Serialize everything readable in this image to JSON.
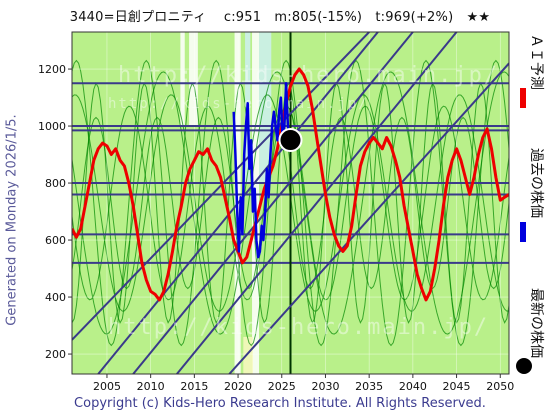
{
  "header": {
    "title": "3440=日創プロニティ　 c:951　m:805(-15%)　t:969(+2%)　★★"
  },
  "side_label": "Generated on Monday 2026/1/5.",
  "footer": "Copyright (c) Kids-Hero Research Institute. All Rights Reserved.",
  "watermark": {
    "top": "http://kids-hero.main.jp/",
    "top_small": "http://kids-hero.main.jp/",
    "bottom": "http://kids-hero.main.jp/"
  },
  "legend": {
    "forecast": "ＡＩ予測",
    "past": "過去の株価",
    "latest": "最新の株価"
  },
  "colors": {
    "plot_bg": "#b9f08a",
    "forecast": "#ee0000",
    "past": "#0000dd",
    "latest": "#000000",
    "trend_line": "#3a3a8a",
    "h_line": "#3a3a8a",
    "green_line": "#008800",
    "band_light": "#ccf0f0",
    "band_white": "#ffffff",
    "band_yellow": "#f8f8c0"
  },
  "chart_data": {
    "type": "line",
    "xlim": [
      2001,
      2051
    ],
    "ylim": [
      130,
      1330
    ],
    "x_ticks": [
      2005,
      2010,
      2015,
      2020,
      2025,
      2030,
      2035,
      2040,
      2045,
      2050
    ],
    "y_ticks": [
      200,
      400,
      600,
      800,
      1000,
      1200
    ],
    "grid": true,
    "horizontal_levels": [
      1150,
      1000,
      985,
      800,
      760,
      620,
      520
    ],
    "current_year_marker": 2026,
    "series": [
      {
        "name": "ＡＩ予測",
        "color": "#ee0000",
        "x": [
          2001,
          2001.5,
          2002,
          2002.5,
          2003,
          2003.5,
          2004,
          2004.5,
          2005,
          2005.5,
          2006,
          2006.5,
          2007,
          2007.5,
          2008,
          2008.5,
          2009,
          2009.5,
          2010,
          2010.5,
          2011,
          2011.5,
          2012,
          2012.5,
          2013,
          2013.5,
          2014,
          2014.5,
          2015,
          2015.5,
          2016,
          2016.5,
          2017,
          2017.5,
          2018,
          2018.5,
          2019,
          2019.5,
          2020,
          2020.5,
          2021,
          2021.5,
          2022,
          2022.5,
          2023,
          2023.5,
          2024,
          2024.5,
          2025,
          2025.5,
          2026,
          2026.5,
          2027,
          2027.5,
          2028,
          2028.5,
          2029,
          2029.5,
          2030,
          2030.5,
          2031,
          2031.5,
          2032,
          2032.5,
          2033,
          2033.5,
          2034,
          2034.5,
          2035,
          2035.5,
          2036,
          2036.5,
          2037,
          2037.5,
          2038,
          2038.5,
          2039,
          2039.5,
          2040,
          2040.5,
          2041,
          2041.5,
          2042,
          2042.5,
          2043,
          2043.5,
          2044,
          2044.5,
          2045,
          2045.5,
          2046,
          2046.5,
          2047,
          2047.5,
          2048,
          2048.5,
          2049,
          2049.5,
          2050,
          2050.5,
          2051
        ],
        "y": [
          640,
          610,
          640,
          720,
          800,
          880,
          920,
          940,
          930,
          900,
          920,
          880,
          860,
          800,
          720,
          620,
          520,
          460,
          420,
          410,
          390,
          420,
          480,
          560,
          650,
          720,
          800,
          850,
          880,
          910,
          900,
          920,
          880,
          860,
          820,
          750,
          680,
          600,
          560,
          520,
          540,
          600,
          660,
          720,
          780,
          820,
          860,
          920,
          1000,
          1080,
          1140,
          1180,
          1200,
          1180,
          1140,
          1060,
          960,
          860,
          760,
          680,
          620,
          580,
          560,
          580,
          650,
          760,
          860,
          910,
          940,
          960,
          940,
          920,
          960,
          930,
          880,
          820,
          720,
          640,
          560,
          480,
          430,
          390,
          420,
          500,
          600,
          720,
          820,
          880,
          920,
          880,
          820,
          760,
          820,
          900,
          960,
          990,
          920,
          820,
          740,
          750,
          760
        ]
      },
      {
        "name": "過去の株価",
        "color": "#0000dd",
        "x": [
          2019.5,
          2019.7,
          2019.9,
          2020.1,
          2020.3,
          2020.5,
          2020.7,
          2020.9,
          2021.1,
          2021.3,
          2021.5,
          2021.7,
          2021.9,
          2022.1,
          2022.3,
          2022.5,
          2022.7,
          2022.9,
          2023.1,
          2023.3,
          2023.5,
          2023.7,
          2023.9,
          2024.1,
          2024.3,
          2024.5,
          2024.7,
          2024.9,
          2025.1,
          2025.3,
          2025.5,
          2025.7,
          2025.9
        ],
        "y": [
          1050,
          900,
          700,
          560,
          750,
          620,
          900,
          1000,
          1080,
          850,
          950,
          700,
          780,
          600,
          540,
          560,
          650,
          600,
          700,
          850,
          750,
          900,
          1000,
          1050,
          1000,
          950,
          1050,
          1100,
          950,
          1000,
          1150,
          1000,
          951
        ]
      }
    ],
    "latest_point": {
      "x": 2026,
      "y": 951
    },
    "trend_lines": [
      {
        "x": [
          2001,
          2035
        ],
        "y": [
          250,
          1330
        ]
      },
      {
        "x": [
          2004,
          2036
        ],
        "y": [
          130,
          1330
        ]
      },
      {
        "x": [
          2008,
          2040
        ],
        "y": [
          130,
          1330
        ]
      },
      {
        "x": [
          2013,
          2045
        ],
        "y": [
          130,
          1330
        ]
      },
      {
        "x": [
          2019,
          2051
        ],
        "y": [
          130,
          1220
        ]
      }
    ],
    "bands": [
      {
        "x": [
          2013.4,
          2013.9
        ],
        "y": [
          1000,
          1330
        ],
        "color": "#ffffff"
      },
      {
        "x": [
          2014.4,
          2015.4
        ],
        "y": [
          1000,
          1330
        ],
        "color": "#ffffff"
      },
      {
        "x": [
          2019.6,
          2020.3
        ],
        "y": [
          130,
          1330
        ],
        "color": "#ffffff"
      },
      {
        "x": [
          2021.6,
          2022.4
        ],
        "y": [
          130,
          1330
        ],
        "color": "#ffffff"
      },
      {
        "x": [
          2022.4,
          2023.8
        ],
        "y": [
          800,
          1330
        ],
        "color": "#ccf0f0"
      },
      {
        "x": [
          2020.8,
          2021.4
        ],
        "y": [
          800,
          1330
        ],
        "color": "#ccf0f0"
      },
      {
        "x": [
          2020.6,
          2021.7
        ],
        "y": [
          130,
          260
        ],
        "color": "#f8f8c0"
      }
    ]
  }
}
